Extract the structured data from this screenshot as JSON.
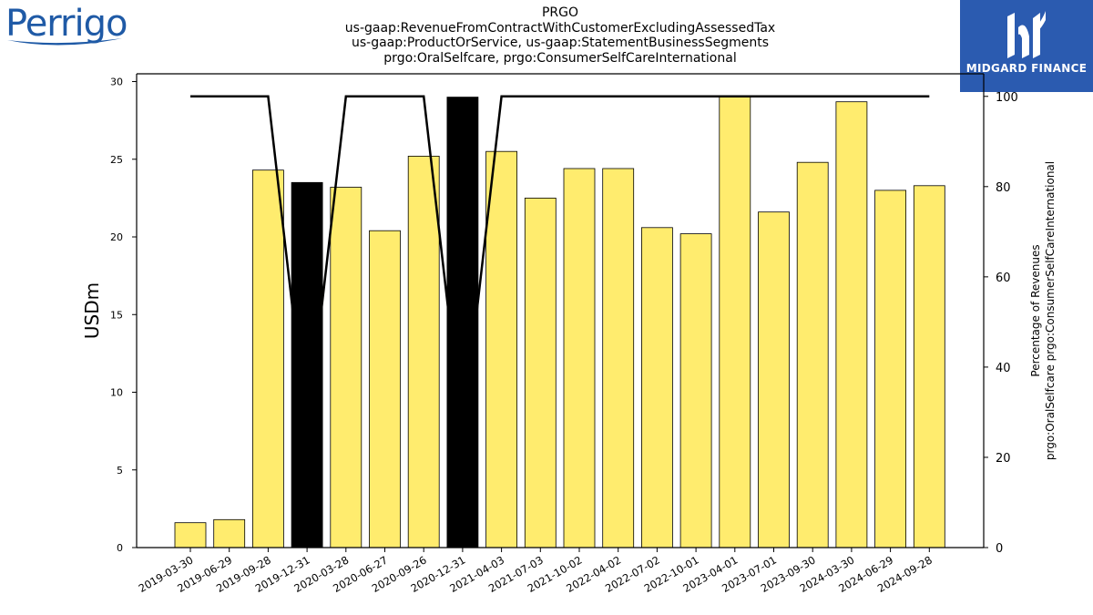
{
  "logos": {
    "company": "Perrigo",
    "brand": "MIDGARD FINANCE",
    "brand_icon": "midgard-m-icon"
  },
  "chart_data": {
    "type": "bar",
    "title_lines": [
      "PRGO",
      "us-gaap:RevenueFromContractWithCustomerExcludingAssessedTax",
      "us-gaap:ProductOrService, us-gaap:StatementBusinessSegments",
      "prgo:OralSelfcare, prgo:ConsumerSelfCareInternational"
    ],
    "ylabel": "USDm",
    "y2label_lines": [
      "Percentage of Revenues",
      "prgo:OralSelfcare prgo:ConsumerSelfCareInternational"
    ],
    "categories": [
      "2019-03-30",
      "2019-06-29",
      "2019-09-28",
      "2019-12-31",
      "2020-03-28",
      "2020-06-27",
      "2020-09-26",
      "2020-12-31",
      "2021-04-03",
      "2021-07-03",
      "2021-10-02",
      "2022-04-02",
      "2022-07-02",
      "2022-10-01",
      "2023-04-01",
      "2023-07-01",
      "2023-09-30",
      "2024-03-30",
      "2024-06-29",
      "2024-09-28"
    ],
    "series": [
      {
        "type": "bar",
        "values": [
          1.6,
          1.8,
          24.3,
          23.5,
          23.2,
          20.4,
          25.2,
          29.0,
          25.5,
          22.5,
          24.4,
          24.4,
          20.6,
          20.2,
          29.0,
          21.6,
          24.8,
          28.7,
          23.0,
          23.3
        ],
        "highlight": [
          false,
          false,
          false,
          true,
          false,
          false,
          false,
          true,
          false,
          false,
          false,
          false,
          false,
          false,
          false,
          false,
          false,
          false,
          false,
          false
        ],
        "color": "#ffec6e",
        "highlight_color": "#000000"
      },
      {
        "type": "line",
        "axis": "right",
        "values": [
          100,
          100,
          100,
          25,
          100,
          100,
          100,
          25,
          100,
          100,
          100,
          100,
          100,
          100,
          100,
          100,
          100,
          100,
          100,
          100
        ],
        "color": "#000000"
      }
    ],
    "ylim": [
      0,
      30.5
    ],
    "yticks": [
      0,
      5,
      10,
      15,
      20,
      25,
      30
    ],
    "y2lim": [
      0,
      105
    ],
    "y2ticks": [
      0,
      20,
      40,
      60,
      80,
      100
    ],
    "grid": false,
    "legend": "none"
  }
}
